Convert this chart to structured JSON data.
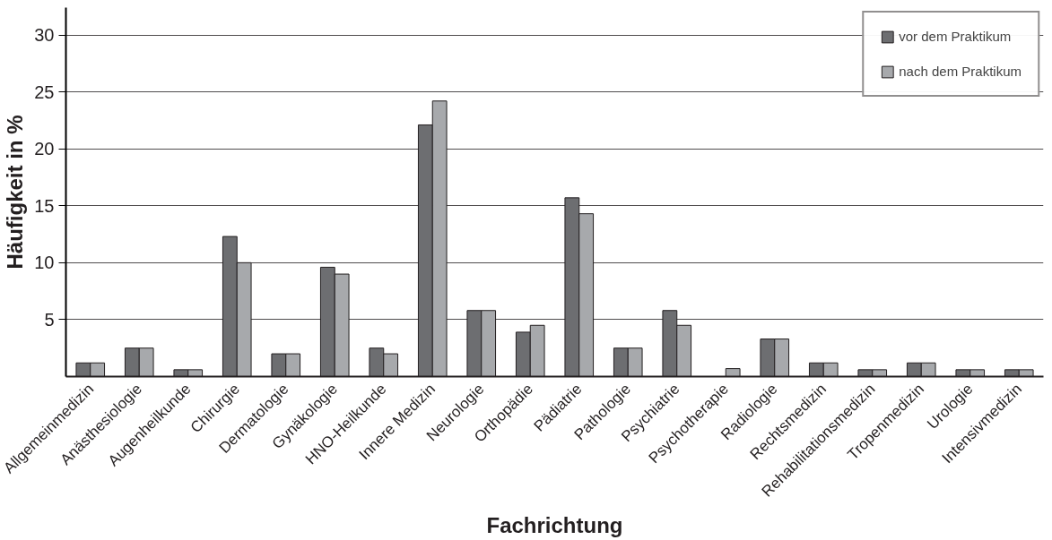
{
  "chart_data": {
    "type": "bar",
    "xlabel": "Fachrichtung",
    "ylabel": "Häufigkeit in %",
    "categories": [
      "Allgemeinmedizin",
      "Anästhesiologie",
      "Augenheilkunde",
      "Chirurgie",
      "Dermatologie",
      "Gynäkologie",
      "HNO-Heilkunde",
      "Innere Medizin",
      "Neurologie",
      "Orthopädie",
      "Pädiatrie",
      "Pathologie",
      "Psychiatrie",
      "Psychotherapie",
      "Radiologie",
      "Rechtsmedizin",
      "Rehabilitationsmedizin",
      "Tropenmedizin",
      "Urologie",
      "Intensivmedizin"
    ],
    "series": [
      {
        "name": "vor dem Praktikum",
        "color": "#6d6e71",
        "values": [
          1.2,
          2.5,
          0.6,
          12.3,
          2.0,
          9.6,
          2.5,
          22.1,
          5.8,
          3.9,
          15.7,
          2.5,
          5.8,
          null,
          3.3,
          1.2,
          0.6,
          1.2,
          0.6,
          0.6
        ]
      },
      {
        "name": "nach dem Praktikum",
        "color": "#a7a9ac",
        "values": [
          1.2,
          2.5,
          0.6,
          10.0,
          2.0,
          9.0,
          2.0,
          24.2,
          5.8,
          4.5,
          14.3,
          2.5,
          4.5,
          0.7,
          3.3,
          1.2,
          0.6,
          1.2,
          0.6,
          0.6
        ]
      }
    ],
    "ylim": [
      0,
      32.4
    ],
    "yticks": [
      5,
      10,
      15,
      20,
      25,
      30
    ],
    "grid": "y",
    "legend": "top right"
  }
}
